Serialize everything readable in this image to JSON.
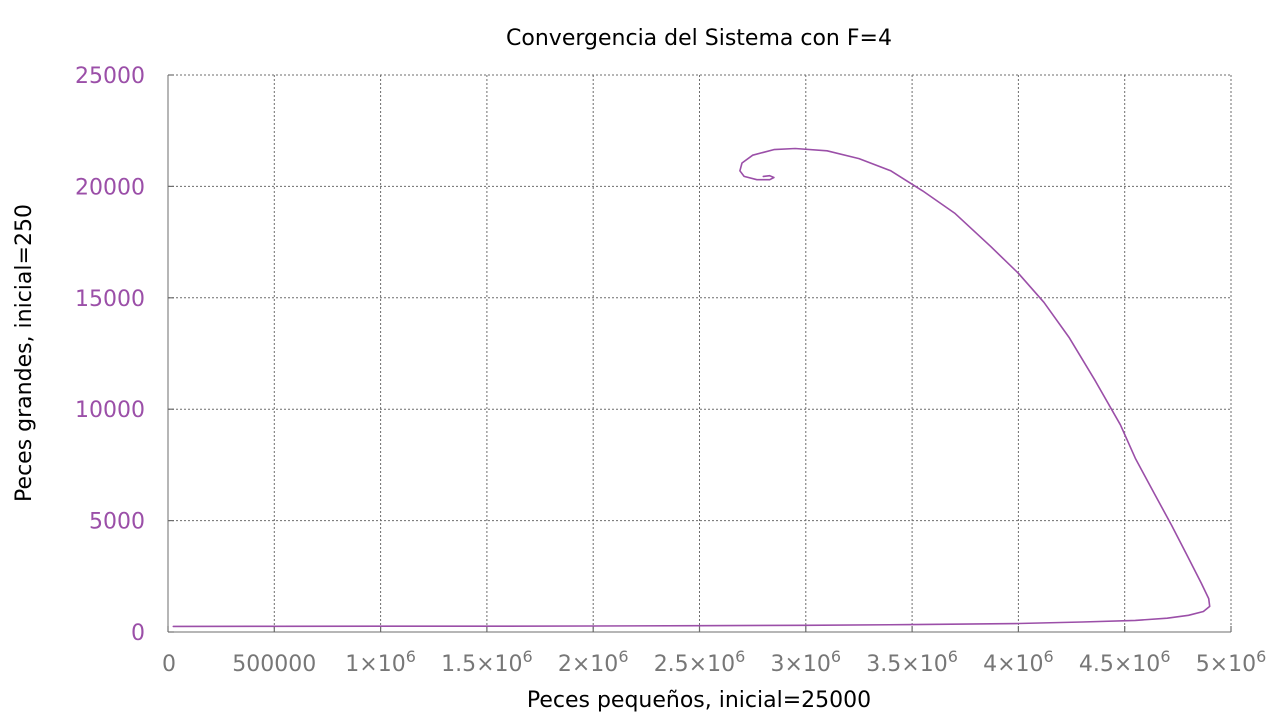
{
  "chart_data": {
    "type": "line",
    "title": "Convergencia del Sistema con F=4",
    "xlabel": "Peces pequeños, inicial=25000",
    "ylabel": "Peces grandes, inicial=250",
    "xlim": [
      0,
      5000000
    ],
    "ylim": [
      0,
      25000
    ],
    "grid": true,
    "legend": "none",
    "x_ticks": [
      {
        "value": 0,
        "base": "0",
        "exp": ""
      },
      {
        "value": 500000,
        "base": "500000",
        "exp": ""
      },
      {
        "value": 1000000,
        "base": "1×10",
        "exp": "6"
      },
      {
        "value": 1500000,
        "base": "1.5×10",
        "exp": "6"
      },
      {
        "value": 2000000,
        "base": "2×10",
        "exp": "6"
      },
      {
        "value": 2500000,
        "base": "2.5×10",
        "exp": "6"
      },
      {
        "value": 3000000,
        "base": "3×10",
        "exp": "6"
      },
      {
        "value": 3500000,
        "base": "3.5×10",
        "exp": "6"
      },
      {
        "value": 4000000,
        "base": "4×10",
        "exp": "6"
      },
      {
        "value": 4500000,
        "base": "4.5×10",
        "exp": "6"
      },
      {
        "value": 5000000,
        "base": "5×10",
        "exp": "6"
      }
    ],
    "y_ticks": [
      {
        "value": 0,
        "label": "0"
      },
      {
        "value": 5000,
        "label": "5000"
      },
      {
        "value": 10000,
        "label": "10000"
      },
      {
        "value": 15000,
        "label": "15000"
      },
      {
        "value": 20000,
        "label": "20000"
      },
      {
        "value": 25000,
        "label": "25000"
      }
    ],
    "series": [
      {
        "color": "#9b4fa8",
        "points": [
          [
            25000,
            250
          ],
          [
            500000,
            255
          ],
          [
            1000000,
            260
          ],
          [
            1500000,
            262
          ],
          [
            2000000,
            268
          ],
          [
            2500000,
            285
          ],
          [
            3000000,
            300
          ],
          [
            3500000,
            330
          ],
          [
            4000000,
            380
          ],
          [
            4300000,
            450
          ],
          [
            4550000,
            520
          ],
          [
            4700000,
            620
          ],
          [
            4800000,
            750
          ],
          [
            4870000,
            920
          ],
          [
            4900000,
            1150
          ],
          [
            4895000,
            1500
          ],
          [
            4860000,
            2200
          ],
          [
            4790000,
            3500
          ],
          [
            4720000,
            4800
          ],
          [
            4640000,
            6200
          ],
          [
            4550000,
            7800
          ],
          [
            4480000,
            9300
          ],
          [
            4360000,
            11300
          ],
          [
            4240000,
            13200
          ],
          [
            4120000,
            14800
          ],
          [
            4000000,
            16100
          ],
          [
            3870000,
            17300
          ],
          [
            3700000,
            18800
          ],
          [
            3550000,
            19800
          ],
          [
            3400000,
            20700
          ],
          [
            3250000,
            21250
          ],
          [
            3100000,
            21600
          ],
          [
            2950000,
            21700
          ],
          [
            2850000,
            21650
          ],
          [
            2750000,
            21400
          ],
          [
            2700000,
            21050
          ],
          [
            2690000,
            20700
          ],
          [
            2710000,
            20450
          ],
          [
            2770000,
            20300
          ],
          [
            2830000,
            20300
          ],
          [
            2850000,
            20400
          ],
          [
            2830000,
            20480
          ],
          [
            2800000,
            20450
          ]
        ]
      }
    ],
    "styles": {
      "title_color": "#000000",
      "label_color": "#000000",
      "xtick_color": "#777777",
      "ytick_color": "#9b4fa8",
      "grid_color": "#6d6d6d"
    }
  }
}
